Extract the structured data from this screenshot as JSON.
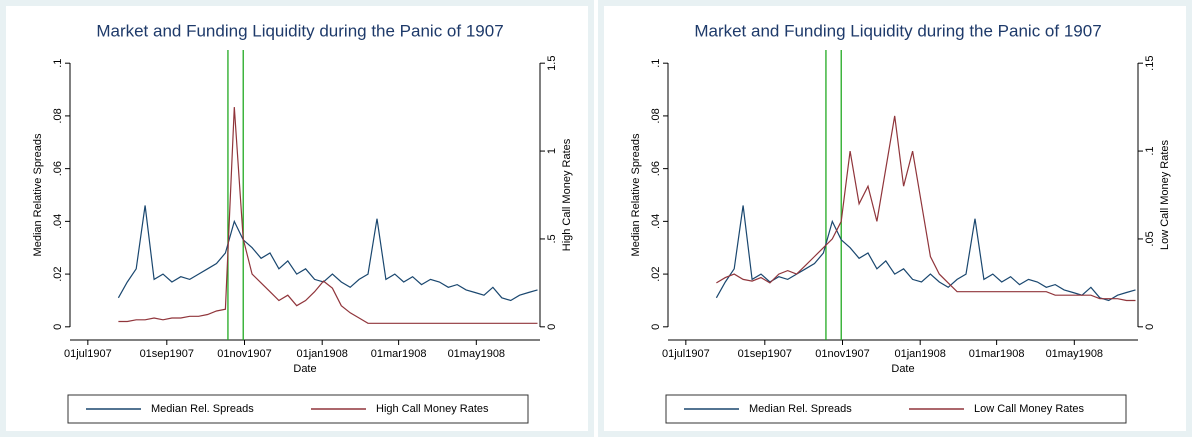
{
  "chart_data": [
    {
      "type": "line",
      "title": "Market and Funding Liquidity during the Panic of 1907",
      "xlabel": "Date",
      "ylabel": "Median Relative Spreads",
      "y2label": "High Call Money Rates",
      "x": [
        "1907-07-25",
        "1907-08-01",
        "1907-08-08",
        "1907-08-15",
        "1907-08-22",
        "1907-08-29",
        "1907-09-05",
        "1907-09-12",
        "1907-09-19",
        "1907-09-26",
        "1907-10-03",
        "1907-10-10",
        "1907-10-17",
        "1907-10-24",
        "1907-10-31",
        "1907-11-07",
        "1907-11-14",
        "1907-11-21",
        "1907-11-28",
        "1907-12-05",
        "1907-12-12",
        "1907-12-19",
        "1907-12-26",
        "1908-01-02",
        "1908-01-09",
        "1908-01-16",
        "1908-01-23",
        "1908-01-30",
        "1908-02-06",
        "1908-02-13",
        "1908-02-20",
        "1908-02-27",
        "1908-03-05",
        "1908-03-12",
        "1908-03-19",
        "1908-03-26",
        "1908-04-02",
        "1908-04-09",
        "1908-04-16",
        "1908-04-23",
        "1908-04-30",
        "1908-05-07",
        "1908-05-14",
        "1908-05-21",
        "1908-05-28",
        "1908-06-04",
        "1908-06-11",
        "1908-06-18"
      ],
      "series": [
        {
          "name": "Median Rel. Spreads",
          "color": "#1a476f",
          "values": [
            0.011,
            0.017,
            0.022,
            0.046,
            0.018,
            0.02,
            0.017,
            0.019,
            0.018,
            0.02,
            0.022,
            0.024,
            0.028,
            0.04,
            0.033,
            0.03,
            0.026,
            0.028,
            0.022,
            0.025,
            0.02,
            0.022,
            0.018,
            0.017,
            0.02,
            0.017,
            0.015,
            0.018,
            0.02,
            0.041,
            0.018,
            0.02,
            0.017,
            0.019,
            0.016,
            0.018,
            0.017,
            0.015,
            0.016,
            0.014,
            0.013,
            0.012,
            0.015,
            0.011,
            0.01,
            0.012,
            0.013,
            0.014
          ]
        },
        {
          "name": "High Call Money Rates",
          "color": "#90353b",
          "axis": "y2",
          "values": [
            0.03,
            0.03,
            0.04,
            0.04,
            0.05,
            0.04,
            0.05,
            0.05,
            0.06,
            0.06,
            0.07,
            0.09,
            0.1,
            1.25,
            0.5,
            0.3,
            0.25,
            0.2,
            0.15,
            0.18,
            0.12,
            0.15,
            0.2,
            0.26,
            0.22,
            0.12,
            0.08,
            0.05,
            0.02,
            0.02,
            0.02,
            0.02,
            0.02,
            0.02,
            0.02,
            0.02,
            0.02,
            0.02,
            0.02,
            0.02,
            0.02,
            0.02,
            0.02,
            0.02,
            0.02,
            0.02,
            0.02,
            0.02
          ]
        }
      ],
      "vlines": [
        "1907-10-19",
        "1907-10-31"
      ],
      "vline_color": "#22aa22",
      "xlim": [
        "1907-06-17",
        "1908-06-20"
      ],
      "xticks": [
        {
          "value": "1907-07-01",
          "label": "01jul1907"
        },
        {
          "value": "1907-09-01",
          "label": "01sep1907"
        },
        {
          "value": "1907-11-01",
          "label": "01nov1907"
        },
        {
          "value": "1908-01-01",
          "label": "01jan1908"
        },
        {
          "value": "1908-03-01",
          "label": "01mar1908"
        },
        {
          "value": "1908-05-01",
          "label": "01may1908"
        }
      ],
      "ylim": [
        -0.005,
        0.105
      ],
      "yticks": [
        0,
        {
          "value": 0.02,
          "label": ".02"
        },
        {
          "value": 0.04,
          "label": ".04"
        },
        {
          "value": 0.06,
          "label": ".06"
        },
        {
          "value": 0.08,
          "label": ".08"
        },
        {
          "value": 0.1,
          "label": ".1"
        }
      ],
      "y2lim": [
        -0.075,
        1.575
      ],
      "y2ticks": [
        0,
        {
          "value": 0.5,
          "label": ".5"
        },
        1,
        1.5
      ]
    },
    {
      "type": "line",
      "title": "Market and Funding Liquidity during the Panic of 1907",
      "xlabel": "Date",
      "ylabel": "Median Relative Spreads",
      "y2label": "Low Call Money Rates",
      "x": [
        "1907-07-25",
        "1907-08-01",
        "1907-08-08",
        "1907-08-15",
        "1907-08-22",
        "1907-08-29",
        "1907-09-05",
        "1907-09-12",
        "1907-09-19",
        "1907-09-26",
        "1907-10-03",
        "1907-10-10",
        "1907-10-17",
        "1907-10-24",
        "1907-10-31",
        "1907-11-07",
        "1907-11-14",
        "1907-11-21",
        "1907-11-28",
        "1907-12-05",
        "1907-12-12",
        "1907-12-19",
        "1907-12-26",
        "1908-01-02",
        "1908-01-09",
        "1908-01-16",
        "1908-01-23",
        "1908-01-30",
        "1908-02-06",
        "1908-02-13",
        "1908-02-20",
        "1908-02-27",
        "1908-03-05",
        "1908-03-12",
        "1908-03-19",
        "1908-03-26",
        "1908-04-02",
        "1908-04-09",
        "1908-04-16",
        "1908-04-23",
        "1908-04-30",
        "1908-05-07",
        "1908-05-14",
        "1908-05-21",
        "1908-05-28",
        "1908-06-04",
        "1908-06-11",
        "1908-06-18"
      ],
      "series": [
        {
          "name": "Median Rel. Spreads",
          "color": "#1a476f",
          "values": [
            0.011,
            0.017,
            0.022,
            0.046,
            0.018,
            0.02,
            0.017,
            0.019,
            0.018,
            0.02,
            0.022,
            0.024,
            0.028,
            0.04,
            0.033,
            0.03,
            0.026,
            0.028,
            0.022,
            0.025,
            0.02,
            0.022,
            0.018,
            0.017,
            0.02,
            0.017,
            0.015,
            0.018,
            0.02,
            0.041,
            0.018,
            0.02,
            0.017,
            0.019,
            0.016,
            0.018,
            0.017,
            0.015,
            0.016,
            0.014,
            0.013,
            0.012,
            0.015,
            0.011,
            0.01,
            0.012,
            0.013,
            0.014
          ]
        },
        {
          "name": "Low Call Money Rates",
          "color": "#90353b",
          "axis": "y2",
          "values": [
            0.025,
            0.028,
            0.03,
            0.027,
            0.026,
            0.028,
            0.025,
            0.03,
            0.032,
            0.03,
            0.035,
            0.04,
            0.045,
            0.05,
            0.06,
            0.1,
            0.07,
            0.08,
            0.06,
            0.09,
            0.12,
            0.08,
            0.1,
            0.07,
            0.04,
            0.03,
            0.025,
            0.02,
            0.02,
            0.02,
            0.02,
            0.02,
            0.02,
            0.02,
            0.02,
            0.02,
            0.02,
            0.02,
            0.018,
            0.018,
            0.018,
            0.018,
            0.018,
            0.016,
            0.016,
            0.016,
            0.015,
            0.015
          ]
        }
      ],
      "vlines": [
        "1907-10-19",
        "1907-10-31"
      ],
      "vline_color": "#22aa22",
      "xlim": [
        "1907-06-17",
        "1908-06-20"
      ],
      "xticks": [
        {
          "value": "1907-07-01",
          "label": "01jul1907"
        },
        {
          "value": "1907-09-01",
          "label": "01sep1907"
        },
        {
          "value": "1907-11-01",
          "label": "01nov1907"
        },
        {
          "value": "1908-01-01",
          "label": "01jan1908"
        },
        {
          "value": "1908-03-01",
          "label": "01mar1908"
        },
        {
          "value": "1908-05-01",
          "label": "01may1908"
        }
      ],
      "ylim": [
        -0.005,
        0.105
      ],
      "yticks": [
        0,
        {
          "value": 0.02,
          "label": ".02"
        },
        {
          "value": 0.04,
          "label": ".04"
        },
        {
          "value": 0.06,
          "label": ".06"
        },
        {
          "value": 0.08,
          "label": ".08"
        },
        {
          "value": 0.1,
          "label": ".1"
        }
      ],
      "y2lim": [
        -0.0075,
        0.1575
      ],
      "y2ticks": [
        0,
        {
          "value": 0.05,
          "label": ".05"
        },
        {
          "value": 0.1,
          "label": ".1"
        },
        {
          "value": 0.15,
          "label": ".15"
        }
      ]
    }
  ]
}
